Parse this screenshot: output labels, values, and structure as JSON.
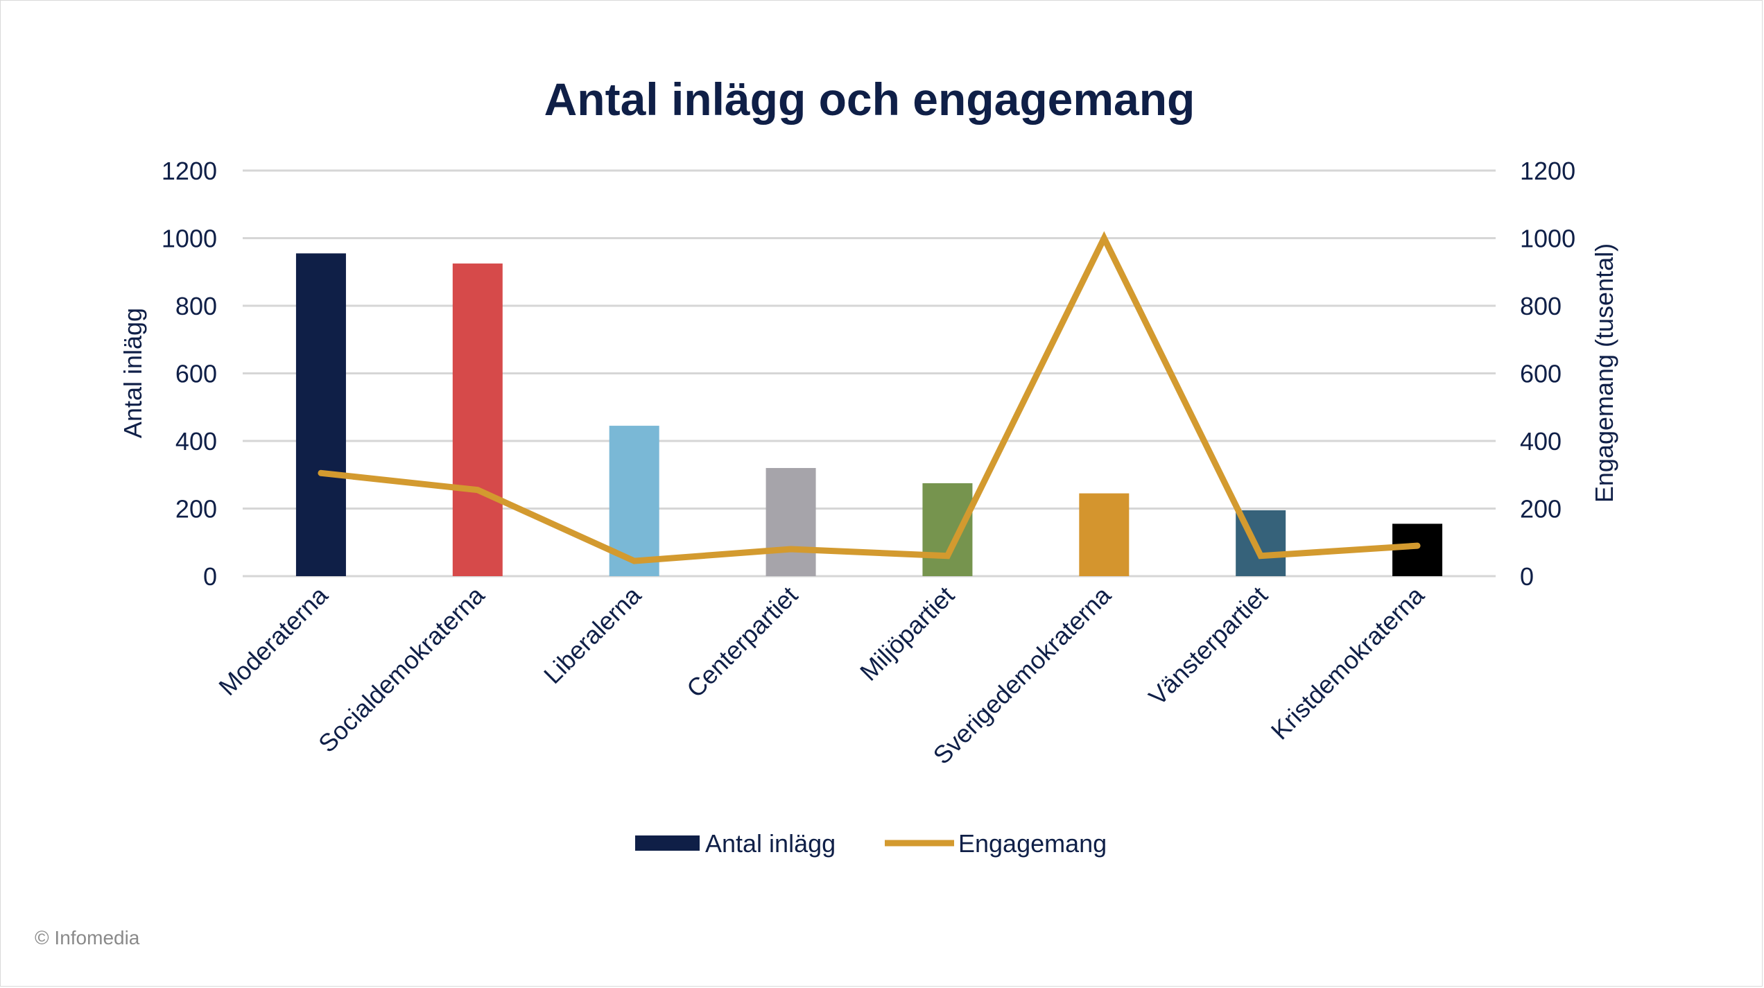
{
  "chart_data": {
    "type": "bar",
    "title": "Antal inlägg och engagemang",
    "categories": [
      "Moderaterna",
      "Socialdemokraterna",
      "Liberalerna",
      "Centerpartiet",
      "Miljöpartiet",
      "Sverigedemokraterna",
      "Vänsterpartiet",
      "Kristdemokraterna"
    ],
    "series": [
      {
        "name": "Antal inlägg",
        "type": "bar",
        "axis": "left",
        "values": [
          955,
          925,
          445,
          320,
          275,
          245,
          195,
          155
        ],
        "colors": [
          "#0f1f47",
          "#d64a4a",
          "#7ab8d6",
          "#a6a4aa",
          "#76944e",
          "#d4952e",
          "#36627a",
          "#000000"
        ],
        "legend_color": "#0f1f47"
      },
      {
        "name": "Engagemang",
        "type": "line",
        "axis": "right",
        "values": [
          305,
          255,
          45,
          80,
          60,
          1000,
          60,
          90
        ],
        "color": "#d39a2f"
      }
    ],
    "ylabel": "Antal inlägg",
    "y2label": "Engagemang (tusental)",
    "ylim": [
      0,
      1200
    ],
    "y2lim": [
      0,
      1200
    ],
    "yticks": [
      "0",
      "200",
      "400",
      "600",
      "800",
      "1000",
      "1200"
    ],
    "y2ticks": [
      "0",
      "200",
      "400",
      "600",
      "800",
      "1000",
      "1200"
    ],
    "grid": true,
    "legend_position": "bottom"
  },
  "copyright": "© Infomedia"
}
